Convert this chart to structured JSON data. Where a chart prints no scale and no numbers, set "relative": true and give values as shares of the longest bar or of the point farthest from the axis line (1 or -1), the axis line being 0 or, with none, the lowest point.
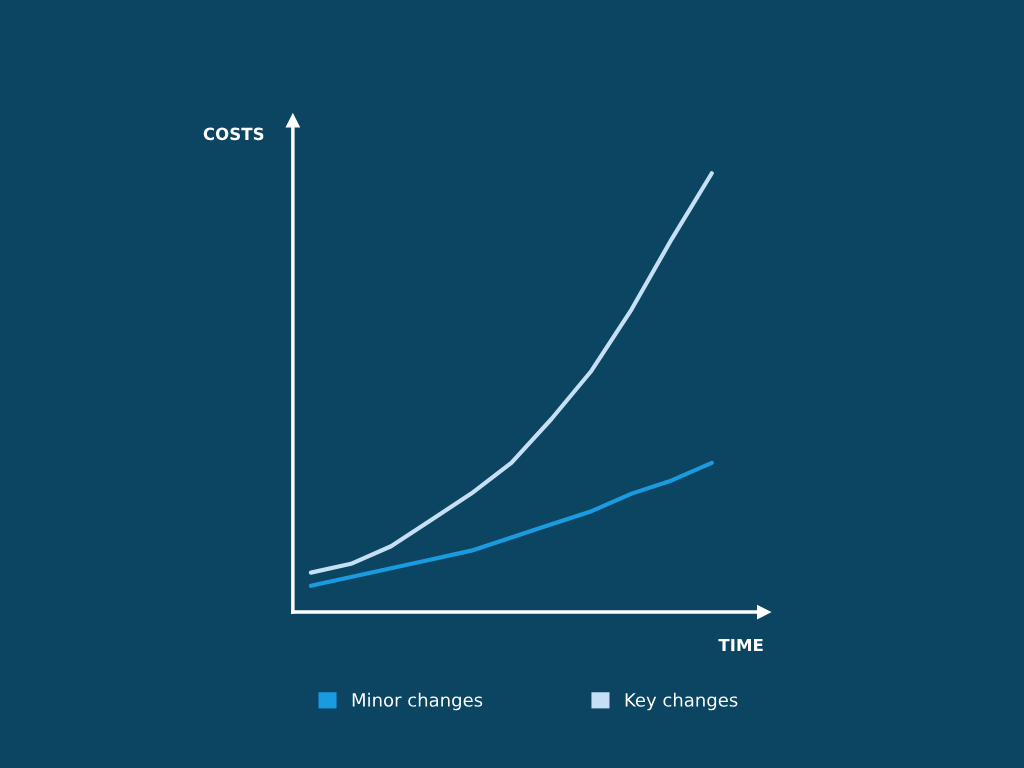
{
  "chart_data": {
    "type": "line",
    "relative": true,
    "xlabel": "TIME",
    "ylabel": "COSTS",
    "categories": [
      null,
      null,
      null,
      null,
      null,
      null,
      null,
      null,
      null,
      null,
      null
    ],
    "series": [
      {
        "name": "Minor changes",
        "color": "#1a9be0",
        "values": [
          0.06,
          0.08,
          0.1,
          0.12,
          0.14,
          0.17,
          0.2,
          0.23,
          0.27,
          0.3,
          0.34
        ]
      },
      {
        "name": "Key changes",
        "color": "#c5e0f5",
        "values": [
          0.09,
          0.11,
          0.15,
          0.21,
          0.27,
          0.34,
          0.44,
          0.55,
          0.69,
          0.85,
          1.0
        ]
      }
    ],
    "legend": "bottom",
    "grid": false,
    "marker": "none",
    "line_style": "solid"
  }
}
